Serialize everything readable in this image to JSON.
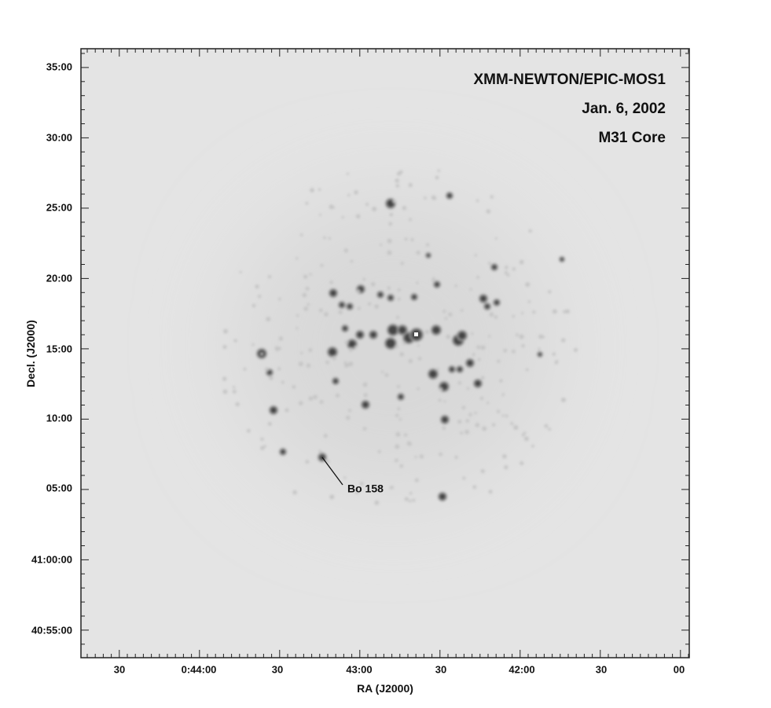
{
  "image": {
    "title_lines": [
      "XMM-NEWTON/EPIC-MOS1",
      "Jan. 6, 2002",
      "M31 Core"
    ],
    "annotation": "Bo 158",
    "x_axis": {
      "label": "RA (J2000)",
      "ticks": [
        "30",
        "0:44:00",
        "30",
        "43:00",
        "30",
        "42:00",
        "30",
        "00"
      ]
    },
    "y_axis": {
      "label": "Decl. (J2000)",
      "ticks": [
        "35:00",
        "30:00",
        "25:00",
        "20:00",
        "15:00",
        "10:00",
        "05:00",
        "41:00:00",
        "40:55:00"
      ]
    }
  }
}
